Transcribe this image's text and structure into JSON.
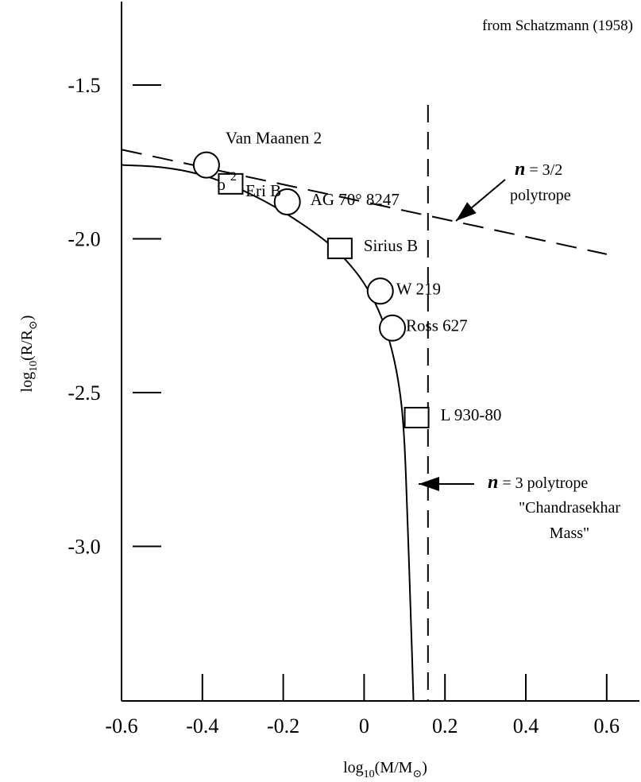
{
  "chart_data": {
    "type": "scatter",
    "source_note": "from Schatzmann (1958)",
    "xlabel": {
      "base": "log",
      "sub": "10",
      "text": "(M/M",
      "symbol_sub": "⊙",
      "close": ")"
    },
    "ylabel": {
      "base": "log",
      "sub": "10",
      "text": "(R/R",
      "symbol_sub": "⊙",
      "close": ")"
    },
    "xlim": [
      -0.6,
      0.75
    ],
    "ylim": [
      -3.5,
      -1.0
    ],
    "xticks": [
      {
        "value": -0.6,
        "label": "-0.6"
      },
      {
        "value": -0.4,
        "label": "-0.4"
      },
      {
        "value": -0.2,
        "label": "-0.2"
      },
      {
        "value": 0,
        "label": "0"
      },
      {
        "value": 0.2,
        "label": "0.2"
      },
      {
        "value": 0.4,
        "label": "0.4"
      },
      {
        "value": 0.6,
        "label": "0.6"
      }
    ],
    "yticks": [
      {
        "value": -1.5,
        "label": "-1.5"
      },
      {
        "value": -2.0,
        "label": "-2.0"
      },
      {
        "value": -2.5,
        "label": "-2.5"
      },
      {
        "value": -3.0,
        "label": "-3.0"
      }
    ],
    "stars": [
      {
        "label": "Van Maanen 2",
        "x": -0.39,
        "y": -1.76,
        "marker": "circle"
      },
      {
        "label": "o",
        "label_sup": "2",
        "label_rest": "Eri B",
        "x": -0.33,
        "y": -1.82,
        "marker": "square"
      },
      {
        "label": "AG 70° 8247",
        "x": -0.19,
        "y": -1.88,
        "marker": "circle"
      },
      {
        "label": "Sirius B",
        "x": -0.06,
        "y": -2.03,
        "marker": "square"
      },
      {
        "label": "W 219",
        "x": 0.04,
        "y": -2.17,
        "marker": "circle"
      },
      {
        "label": "Ross 627",
        "x": 0.07,
        "y": -2.29,
        "marker": "circle"
      },
      {
        "label": "L 930-80",
        "x": 0.13,
        "y": -2.58,
        "marker": "square"
      }
    ],
    "solid_curve": [
      [
        -0.6,
        -1.76
      ],
      [
        -0.5,
        -1.765
      ],
      [
        -0.4,
        -1.79
      ],
      [
        -0.3,
        -1.84
      ],
      [
        -0.2,
        -1.91
      ],
      [
        -0.1,
        -2.0
      ],
      [
        -0.05,
        -2.06
      ],
      [
        0,
        -2.14
      ],
      [
        0.04,
        -2.24
      ],
      [
        0.07,
        -2.36
      ],
      [
        0.09,
        -2.5
      ],
      [
        0.1,
        -2.65
      ],
      [
        0.107,
        -2.9
      ],
      [
        0.115,
        -3.2
      ],
      [
        0.122,
        -3.5
      ]
    ],
    "n32_line": [
      [
        -0.6,
        -1.71
      ],
      [
        0.6,
        -2.05
      ]
    ],
    "chandrasekhar_mass": 0.158,
    "annotations": {
      "n32": {
        "n": "n",
        "rest": " = 3/2",
        "line2": "polytrope"
      },
      "n3": {
        "n": "n",
        "rest": " = 3 polytrope",
        "line2": "\"Chandrasekhar",
        "line3": "Mass\""
      }
    }
  }
}
